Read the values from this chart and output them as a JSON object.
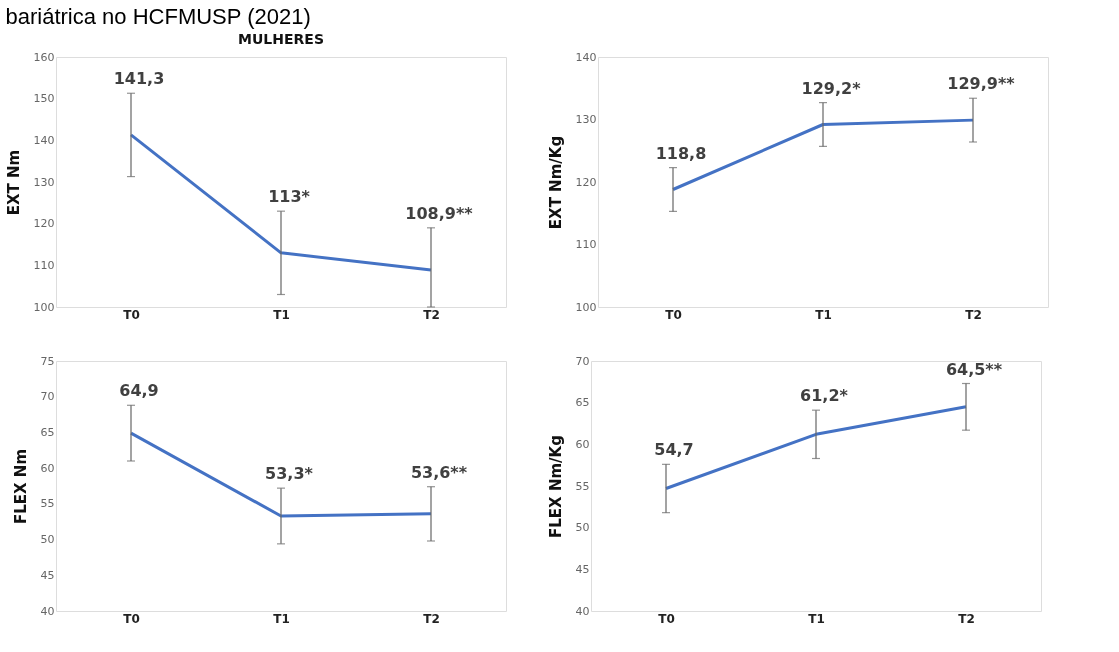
{
  "chart_data": [
    {
      "type": "line",
      "title": "MULHERES",
      "ylabel": "EXT Nm",
      "annotations": [
        "bariátrica no HCFMUSP (2021)"
      ],
      "categories": [
        "T0",
        "T1",
        "T2"
      ],
      "values": [
        141.3,
        113,
        108.9
      ],
      "value_labels": [
        "141,3",
        "113*",
        "108,9**"
      ],
      "errors": [
        10,
        [
          103,
          123
        ],
        [
          100,
          119
        ]
      ],
      "color": "#4472c4",
      "ylim": [
        100,
        160
      ],
      "yticks": [
        100,
        110,
        120,
        130,
        140,
        150,
        160
      ],
      "grid": false,
      "marker": "none"
    },
    {
      "type": "line",
      "ylabel": "EXT Nm/Kg",
      "categories": [
        "T0",
        "T1",
        "T2"
      ],
      "values": [
        118.8,
        129.2,
        129.9
      ],
      "value_labels": [
        "118,8",
        "129,2*",
        "129,9**"
      ],
      "errors": [
        3.5,
        3.5,
        3.5
      ],
      "color": "#4472c4",
      "ylim": [
        100,
        140
      ],
      "yticks": [
        100,
        110,
        120,
        130,
        140
      ],
      "grid": false,
      "marker": "none"
    },
    {
      "type": "line",
      "ylabel": "FLEX Nm",
      "categories": [
        "T0",
        "T1",
        "T2"
      ],
      "values": [
        64.9,
        53.3,
        53.6
      ],
      "value_labels": [
        "64,9",
        "53,3*",
        "53,6**"
      ],
      "errors": [
        3.9,
        3.9,
        3.8
      ],
      "color": "#4472c4",
      "ylim": [
        40,
        75
      ],
      "yticks": [
        40,
        45,
        50,
        55,
        60,
        65,
        70,
        75
      ],
      "grid": false,
      "marker": "none"
    },
    {
      "type": "line",
      "ylabel": "FLEX Nm/Kg",
      "categories": [
        "T0",
        "T1",
        "T2"
      ],
      "values": [
        54.7,
        61.2,
        64.5
      ],
      "value_labels": [
        "54,7",
        "61,2*",
        "64,5**"
      ],
      "errors": [
        2.9,
        2.9,
        2.8
      ],
      "color": "#4472c4",
      "ylim": [
        40,
        70
      ],
      "yticks": [
        40,
        45,
        50,
        55,
        60,
        65,
        70
      ],
      "grid": false,
      "marker": "none"
    }
  ]
}
